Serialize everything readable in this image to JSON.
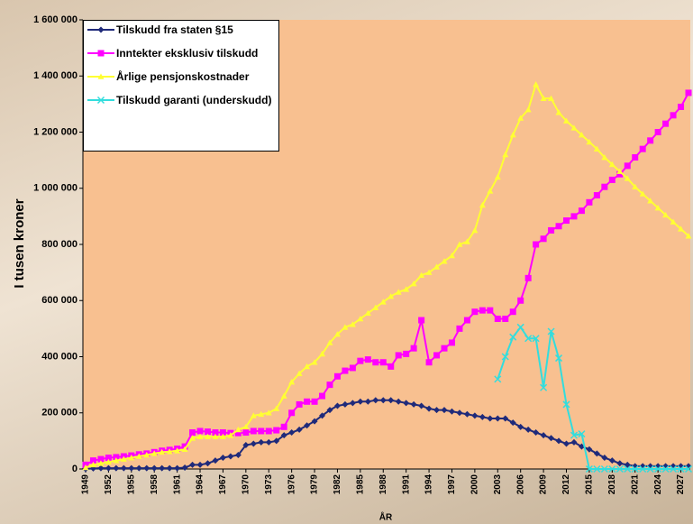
{
  "chart_data": {
    "type": "line",
    "y_label": "I tusen kroner",
    "x_label": "ÅR",
    "xlim": [
      1949,
      2028
    ],
    "xticks": [
      1949,
      1952,
      1955,
      1958,
      1961,
      1964,
      1967,
      1970,
      1973,
      1976,
      1979,
      1982,
      1985,
      1988,
      1991,
      1994,
      1997,
      2000,
      2003,
      2006,
      2009,
      2012,
      2015,
      2018,
      2021,
      2024,
      2027
    ],
    "ylim": [
      0,
      1600000
    ],
    "yticks": [
      0,
      {
        "value": 200000,
        "label": "200 000"
      },
      {
        "value": 400000,
        "label": "400 000"
      },
      {
        "value": 600000,
        "label": "600 000"
      },
      {
        "value": 800000,
        "label": "800 000"
      },
      {
        "value": 1000000,
        "label": "1 000 000"
      },
      {
        "value": 1200000,
        "label": "1 200 000"
      },
      {
        "value": 1400000,
        "label": "1 400 000"
      },
      {
        "value": 1600000,
        "label": "1 600 000"
      }
    ],
    "x": [
      1949,
      1950,
      1951,
      1952,
      1953,
      1954,
      1955,
      1956,
      1957,
      1958,
      1959,
      1960,
      1961,
      1962,
      1963,
      1964,
      1965,
      1966,
      1967,
      1968,
      1969,
      1970,
      1971,
      1972,
      1973,
      1974,
      1975,
      1976,
      1977,
      1978,
      1979,
      1980,
      1981,
      1982,
      1983,
      1984,
      1985,
      1986,
      1987,
      1988,
      1989,
      1990,
      1991,
      1992,
      1993,
      1994,
      1995,
      1996,
      1997,
      1998,
      1999,
      2000,
      2001,
      2002,
      2003,
      2004,
      2005,
      2006,
      2007,
      2008,
      2009,
      2010,
      2011,
      2012,
      2013,
      2014,
      2015,
      2016,
      2017,
      2018,
      2019,
      2020,
      2021,
      2022,
      2023,
      2024,
      2025,
      2026,
      2027,
      2028
    ],
    "series": [
      {
        "name": "Tilskudd fra staten §15",
        "color": "#1f2a7a",
        "marker": "diamond",
        "values": [
          0,
          2000,
          3000,
          3000,
          3000,
          3000,
          3000,
          3000,
          3000,
          3000,
          3000,
          3000,
          3000,
          5000,
          15000,
          15000,
          20000,
          30000,
          40000,
          45000,
          50000,
          85000,
          90000,
          95000,
          95000,
          100000,
          120000,
          130000,
          140000,
          155000,
          170000,
          190000,
          210000,
          225000,
          230000,
          235000,
          240000,
          240000,
          245000,
          245000,
          245000,
          240000,
          235000,
          230000,
          225000,
          215000,
          210000,
          210000,
          205000,
          200000,
          195000,
          190000,
          185000,
          180000,
          180000,
          180000,
          165000,
          150000,
          140000,
          130000,
          120000,
          110000,
          100000,
          90000,
          95000,
          80000,
          70000,
          55000,
          40000,
          30000,
          20000,
          15000,
          10000,
          10000,
          10000,
          10000,
          10000,
          10000,
          10000,
          10000
        ]
      },
      {
        "name": "Inntekter eksklusiv tilskudd",
        "color": "#ff00ff",
        "marker": "square",
        "values": [
          15000,
          30000,
          35000,
          40000,
          42000,
          45000,
          48000,
          52000,
          55000,
          60000,
          65000,
          68000,
          72000,
          80000,
          130000,
          135000,
          133000,
          130000,
          130000,
          128000,
          128000,
          130000,
          135000,
          135000,
          135000,
          138000,
          150000,
          200000,
          230000,
          240000,
          240000,
          260000,
          300000,
          330000,
          350000,
          360000,
          385000,
          390000,
          380000,
          380000,
          365000,
          405000,
          410000,
          430000,
          530000,
          380000,
          405000,
          430000,
          450000,
          500000,
          530000,
          560000,
          565000,
          565000,
          535000,
          535000,
          560000,
          600000,
          680000,
          800000,
          820000,
          850000,
          865000,
          885000,
          900000,
          920000,
          950000,
          975000,
          1005000,
          1030000,
          1050000,
          1080000,
          1110000,
          1140000,
          1170000,
          1200000,
          1230000,
          1260000,
          1290000,
          1340000
        ]
      },
      {
        "name": "Årlige pensjonskostnader",
        "color": "#ffff33",
        "marker": "triangle",
        "values": [
          5000,
          15000,
          20000,
          25000,
          30000,
          35000,
          40000,
          45000,
          50000,
          55000,
          60000,
          62000,
          65000,
          70000,
          110000,
          115000,
          115000,
          115000,
          115000,
          120000,
          140000,
          150000,
          190000,
          195000,
          200000,
          215000,
          260000,
          310000,
          340000,
          365000,
          380000,
          410000,
          450000,
          480000,
          505000,
          515000,
          535000,
          555000,
          575000,
          595000,
          615000,
          630000,
          640000,
          660000,
          690000,
          700000,
          720000,
          740000,
          760000,
          800000,
          810000,
          850000,
          940000,
          990000,
          1040000,
          1120000,
          1190000,
          1250000,
          1280000,
          1370000,
          1320000,
          1320000,
          1270000,
          1240000,
          1215000,
          1190000,
          1165000,
          1140000,
          1110000,
          1085000,
          1060000,
          1035000,
          1005000,
          980000,
          955000,
          930000,
          905000,
          880000,
          855000,
          830000
        ]
      },
      {
        "name": "Tilskudd garanti (underskudd)",
        "color": "#33dddd",
        "marker": "x",
        "values": [
          null,
          null,
          null,
          null,
          null,
          null,
          null,
          null,
          null,
          null,
          null,
          null,
          null,
          null,
          null,
          null,
          null,
          null,
          null,
          null,
          null,
          null,
          null,
          null,
          null,
          null,
          null,
          null,
          null,
          null,
          null,
          null,
          null,
          null,
          null,
          null,
          null,
          null,
          null,
          null,
          null,
          null,
          null,
          null,
          null,
          null,
          null,
          null,
          null,
          null,
          null,
          null,
          null,
          null,
          320000,
          400000,
          470000,
          505000,
          465000,
          465000,
          290000,
          490000,
          395000,
          230000,
          120000,
          125000,
          0,
          0,
          0,
          0,
          0,
          0,
          0,
          0,
          0,
          0,
          0,
          0,
          0,
          0
        ]
      }
    ]
  }
}
